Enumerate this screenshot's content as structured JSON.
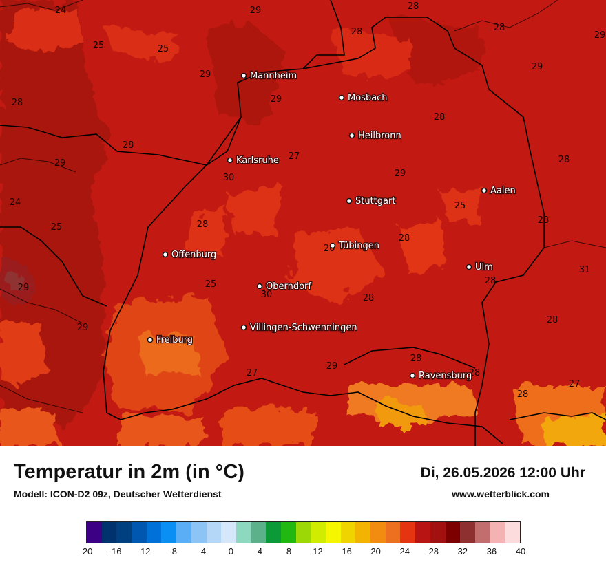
{
  "title": "Temperatur in 2m (in °C)",
  "subtitle": "Modell: ICON-D2 09z, Deutscher Wetterdienst",
  "datetime": "Di, 26.05.2026 12:00 Uhr",
  "website": "www.wetterblick.com",
  "map": {
    "cities": [
      {
        "name": "Mannheim"
      },
      {
        "name": "Mosbach"
      },
      {
        "name": "Heilbronn"
      },
      {
        "name": "Karlsruhe"
      },
      {
        "name": "Aalen"
      },
      {
        "name": "Stuttgart"
      },
      {
        "name": "Tübingen"
      },
      {
        "name": "Offenburg"
      },
      {
        "name": "Ulm"
      },
      {
        "name": "Oberndorf"
      },
      {
        "name": "Villingen-Schwenningen"
      },
      {
        "name": "Freiburg"
      },
      {
        "name": "Ravensburg"
      }
    ],
    "values": [
      "24",
      "29",
      "28",
      "28",
      "29",
      "25",
      "25",
      "28",
      "29",
      "29",
      "28",
      "29",
      "28",
      "28",
      "29",
      "27",
      "29",
      "28",
      "30",
      "24",
      "25",
      "28",
      "25",
      "28",
      "28",
      "26",
      "31",
      "29",
      "28",
      "25",
      "30",
      "28",
      "28",
      "29",
      "28",
      "27",
      "29",
      "28",
      "27",
      "28"
    ]
  },
  "legend": {
    "colors": [
      "#3b0083",
      "#00326e",
      "#003f80",
      "#0057b0",
      "#0071d8",
      "#0a90f4",
      "#5aaef5",
      "#8cc4f6",
      "#b4d7f8",
      "#d5e8fb",
      "#8dd9c0",
      "#5cb08a",
      "#0c9a38",
      "#22b812",
      "#9cd806",
      "#d0ec00",
      "#f6f600",
      "#f0d400",
      "#f2b400",
      "#f28c10",
      "#ed7020",
      "#e43412",
      "#b81414",
      "#a31010",
      "#7d0000",
      "#8e3030",
      "#c26e6e",
      "#f4b2b2",
      "#fcdcdc"
    ],
    "ticks": [
      "-20",
      "-16",
      "-12",
      "-8",
      "-4",
      "0",
      "4",
      "8",
      "12",
      "16",
      "20",
      "24",
      "28",
      "32",
      "36",
      "40"
    ]
  }
}
